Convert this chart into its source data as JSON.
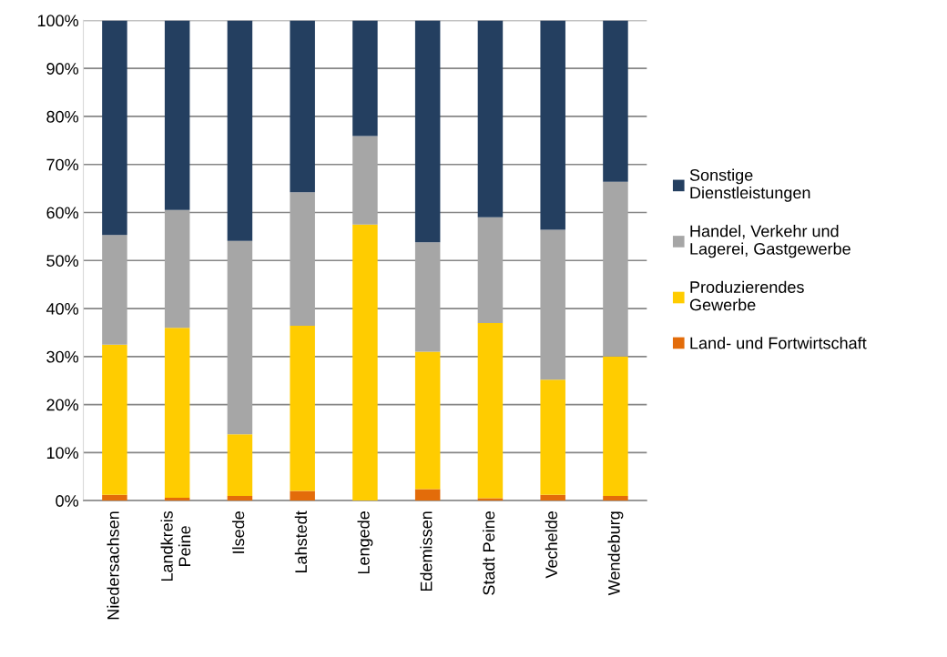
{
  "chart_data": {
    "type": "bar",
    "stacked": true,
    "categories": [
      "Niedersachsen",
      "Landkreis\nPeine",
      "Ilsede",
      "Lahstedt",
      "Lengede",
      "Edemissen",
      "Stadt Peine",
      "Vechelde",
      "Wendeburg"
    ],
    "series": [
      {
        "name": "Land- und Fortwirtschaft",
        "color": "#e36c0a",
        "values": [
          1.2,
          0.6,
          1.0,
          2.0,
          0,
          2.4,
          0.5,
          1.2,
          1.0
        ]
      },
      {
        "name": "Produzierendes\nGewerbe",
        "color": "#ffcc00",
        "values": [
          31.3,
          35.4,
          12.8,
          34.4,
          57.5,
          28.6,
          36.5,
          24.0,
          29.0
        ]
      },
      {
        "name": "Handel, Verkehr und\nLagerei, Gastgewerbe",
        "color": "#a6a6a6",
        "values": [
          22.8,
          24.5,
          40.3,
          27.8,
          18.4,
          22.8,
          22.0,
          31.2,
          36.4
        ]
      },
      {
        "name": "Sonstige\nDienstleistungen",
        "color": "#243f60",
        "values": [
          44.7,
          39.5,
          45.9,
          35.8,
          24.1,
          46.2,
          41.0,
          43.6,
          33.6
        ]
      }
    ],
    "ylim": [
      0,
      100
    ],
    "yticks": [
      {
        "value": 0,
        "label": "0%"
      },
      {
        "value": 10,
        "label": "10%"
      },
      {
        "value": 20,
        "label": "20%"
      },
      {
        "value": 30,
        "label": "30%"
      },
      {
        "value": 40,
        "label": "40%"
      },
      {
        "value": 50,
        "label": "50%"
      },
      {
        "value": 60,
        "label": "60%"
      },
      {
        "value": 70,
        "label": "70%"
      },
      {
        "value": 80,
        "label": "80%"
      },
      {
        "value": 90,
        "label": "90%"
      },
      {
        "value": 100,
        "label": "100%"
      }
    ],
    "grid": "y",
    "legend": "right"
  }
}
